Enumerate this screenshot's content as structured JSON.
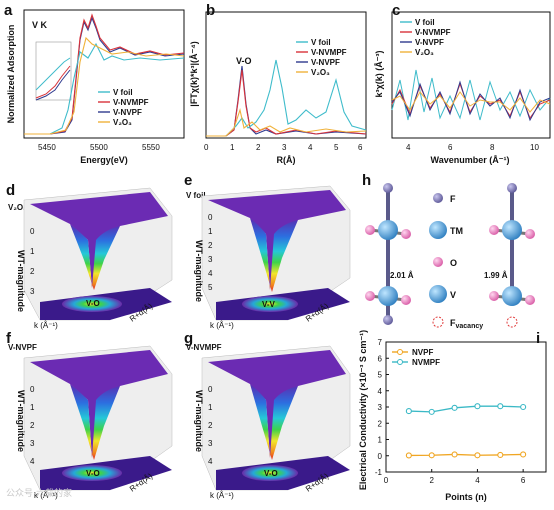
{
  "figure": {
    "panel_letters": [
      "a",
      "b",
      "c",
      "d",
      "e",
      "f",
      "g",
      "h",
      "i"
    ],
    "watermark": "公众号·六载的家"
  },
  "colors": {
    "v_foil": "#3fbccb",
    "v_nvmpf": "#d8323a",
    "v_nvpf": "#2f3a8f",
    "v2o3": "#f0b23a",
    "nvpf_line": "#f0a623",
    "nvmpf_line": "#3bb9c6",
    "atom_F": "#6e6aa8",
    "atom_TM": "#2f8fc4",
    "atom_O": "#e27bb7",
    "atom_V": "#4a9fd8",
    "vacancy": "#e03a3a"
  },
  "panel_a": {
    "inset_label": "V K",
    "xlabel": "Energy(eV)",
    "ylabel": "Normalized Adsorption",
    "xticks": [
      "5450",
      "5500",
      "5550"
    ],
    "legend": [
      "V foil",
      "V-NVMPF",
      "V-NVPF",
      "V₂O₃"
    ]
  },
  "panel_b": {
    "annotation": "V-O",
    "xlabel": "R(Å)",
    "ylabel": "|FTχ(k)*k³|(Å⁻⁴)",
    "xticks": [
      "0",
      "1",
      "2",
      "3",
      "4",
      "5",
      "6"
    ],
    "legend": [
      "V foil",
      "V-NVMPF",
      "V-NVPF",
      "V₂O₃"
    ]
  },
  "panel_c": {
    "xlabel": "Wavenumber (Å⁻¹)",
    "ylabel": "k³χ(k) (Å⁻³)",
    "xticks": [
      "4",
      "6",
      "8",
      "10"
    ],
    "legend": [
      "V foil",
      "V-NVMPF",
      "V-NVPF",
      "V₂O₃"
    ]
  },
  "wavelet_panels": [
    {
      "letter": "d",
      "title": "V₂O₃",
      "zlabel": "WT-magnitude",
      "marker": "V-O",
      "zticks": [
        "0",
        "1",
        "2",
        "3"
      ]
    },
    {
      "letter": "e",
      "title": "V foil",
      "zlabel": "WT-magnitude",
      "marker": "V-V",
      "zticks": [
        "0",
        "1",
        "2",
        "3",
        "4",
        "5"
      ]
    },
    {
      "letter": "f",
      "title": "V-NVPF",
      "zlabel": "WT-magnitude",
      "marker": "V-O",
      "zticks": [
        "0",
        "1",
        "2",
        "3",
        "4"
      ]
    },
    {
      "letter": "g",
      "title": "V-NVMPF",
      "zlabel": "WT-magnitude",
      "marker": "V-O",
      "zticks": [
        "0",
        "1",
        "2",
        "3",
        "4"
      ]
    }
  ],
  "wavelet_axes": {
    "k_label": "k (Å⁻¹)",
    "r_label": "R+α(Å)"
  },
  "panel_h": {
    "bond_left": "2.01 Å",
    "bond_right": "1.99 Å",
    "legend": [
      "F",
      "TM",
      "O",
      "V",
      "F"
    ],
    "vacancy_sub": "vacancy"
  },
  "chart_data": {
    "type": "line",
    "xlabel": "Points (n)",
    "ylabel": "Electrical Conductivity (×10⁻³ S cm⁻¹)",
    "xticks": [
      "0",
      "2",
      "4",
      "6"
    ],
    "yticks": [
      "-1",
      "0",
      "1",
      "2",
      "3",
      "4",
      "5",
      "6",
      "7"
    ],
    "xlim": [
      0,
      7
    ],
    "ylim": [
      -1,
      7
    ],
    "x": [
      1,
      2,
      3,
      4,
      5,
      6
    ],
    "series": [
      {
        "name": "NVPF",
        "values": [
          0.02,
          0.03,
          0.08,
          0.03,
          0.05,
          0.08
        ]
      },
      {
        "name": "NVMPF",
        "values": [
          2.75,
          2.7,
          2.95,
          3.05,
          3.05,
          3.0
        ]
      }
    ],
    "legend_position": "top-left"
  }
}
